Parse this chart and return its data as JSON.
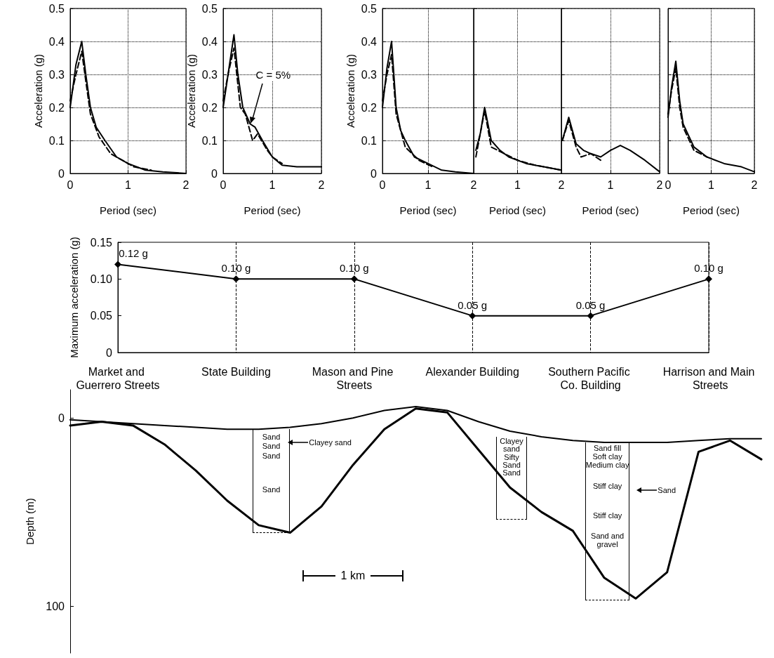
{
  "chart_data": [
    {
      "type": "line",
      "ylabel": "Acceleration (g)",
      "xlabel": "Period (sec)",
      "xlim": [
        0,
        2
      ],
      "xticks": [
        0,
        1,
        2
      ],
      "ylim": [
        0,
        0.5
      ],
      "yticks": [
        0,
        0.1,
        0.2,
        0.3,
        0.4,
        0.5
      ],
      "grid": true,
      "marker": "none",
      "series": [
        {
          "color": "#000000",
          "line_style": "solid",
          "x": [
            0,
            0.1,
            0.2,
            0.27,
            0.35,
            0.45,
            0.6,
            0.8,
            1.0,
            1.3,
            1.6,
            2.0
          ],
          "values": [
            0.2,
            0.33,
            0.4,
            0.3,
            0.2,
            0.14,
            0.1,
            0.05,
            0.03,
            0.01,
            0.005,
            0
          ]
        },
        {
          "color": "#000000",
          "line_style": "dashed",
          "x": [
            0,
            0.1,
            0.2,
            0.27,
            0.35,
            0.5,
            0.7,
            0.9,
            1.1,
            1.4
          ],
          "values": [
            0.22,
            0.3,
            0.37,
            0.28,
            0.18,
            0.11,
            0.06,
            0.04,
            0.02,
            0.01
          ]
        }
      ]
    },
    {
      "type": "line",
      "ylabel": "Acceleration (g)",
      "xlabel": "Period (sec)",
      "xlim": [
        0,
        2
      ],
      "xticks": [
        0,
        1,
        2
      ],
      "ylim": [
        0,
        0.5
      ],
      "yticks": [
        0,
        0.1,
        0.2,
        0.3,
        0.4,
        0.5
      ],
      "grid": true,
      "marker": "none",
      "annotations": [
        {
          "text": "C = 5%",
          "x": 0.55,
          "y": 0.15
        }
      ],
      "series": [
        {
          "color": "#000000",
          "line_style": "solid",
          "x": [
            0,
            0.1,
            0.22,
            0.3,
            0.4,
            0.55,
            0.65,
            0.8,
            1.0,
            1.2,
            1.5,
            2.0
          ],
          "values": [
            0.2,
            0.3,
            0.42,
            0.3,
            0.2,
            0.15,
            0.14,
            0.1,
            0.05,
            0.025,
            0.02,
            0.02
          ]
        },
        {
          "color": "#000000",
          "line_style": "dashed",
          "x": [
            0,
            0.1,
            0.22,
            0.35,
            0.45,
            0.6,
            0.7,
            0.9,
            1.0,
            1.2
          ],
          "values": [
            0.22,
            0.3,
            0.38,
            0.2,
            0.18,
            0.1,
            0.12,
            0.07,
            0.05,
            0.03
          ]
        }
      ]
    },
    {
      "type": "line",
      "ylabel": "Acceleration (g)",
      "xlabel": "Period (sec)",
      "xlim": [
        0,
        2
      ],
      "xticks": [
        0,
        1,
        2
      ],
      "ylim": [
        0,
        0.5
      ],
      "yticks": [
        0,
        0.1,
        0.2,
        0.3,
        0.4,
        0.5
      ],
      "grid": true,
      "marker": "none",
      "series": [
        {
          "color": "#000000",
          "line_style": "solid",
          "x": [
            0,
            0.1,
            0.2,
            0.3,
            0.4,
            0.5,
            0.7,
            1.0,
            1.3,
            1.6,
            2.0
          ],
          "values": [
            0.2,
            0.32,
            0.4,
            0.2,
            0.13,
            0.1,
            0.05,
            0.03,
            0.01,
            0.005,
            0
          ]
        },
        {
          "color": "#000000",
          "line_style": "dashed",
          "x": [
            0,
            0.1,
            0.2,
            0.3,
            0.5,
            0.8,
            1.1
          ],
          "values": [
            0.22,
            0.3,
            0.36,
            0.18,
            0.08,
            0.04,
            0.02
          ]
        }
      ]
    },
    {
      "type": "line",
      "xlabel": "Period (sec)",
      "xlim": [
        0,
        2
      ],
      "xticks": [
        1,
        2
      ],
      "ylim": [
        0,
        0.5
      ],
      "yticks": [
        0,
        0.1,
        0.2,
        0.3,
        0.4,
        0.5
      ],
      "grid": true,
      "tick_labels": "x",
      "marker": "none",
      "series": [
        {
          "color": "#000000",
          "line_style": "solid",
          "x": [
            0.05,
            0.15,
            0.25,
            0.4,
            0.6,
            0.8,
            1.2,
            1.6,
            2.0
          ],
          "values": [
            0.07,
            0.12,
            0.2,
            0.1,
            0.07,
            0.05,
            0.03,
            0.02,
            0.01
          ]
        },
        {
          "color": "#000000",
          "line_style": "dashed",
          "x": [
            0.05,
            0.25,
            0.4,
            0.7,
            1.0,
            1.4,
            2.0
          ],
          "values": [
            0.05,
            0.19,
            0.08,
            0.06,
            0.04,
            0.025,
            0.01
          ]
        }
      ]
    },
    {
      "type": "line",
      "xlabel": "Period (sec)",
      "xlim": [
        0,
        2
      ],
      "xticks": [
        1,
        2
      ],
      "ylim": [
        0,
        0.5
      ],
      "yticks": [
        0,
        0.1,
        0.2,
        0.3,
        0.4,
        0.5
      ],
      "grid": true,
      "tick_labels": "x",
      "marker": "none",
      "series": [
        {
          "color": "#000000",
          "line_style": "solid",
          "x": [
            0.02,
            0.15,
            0.3,
            0.45,
            0.6,
            0.8,
            1.0,
            1.2,
            1.4,
            1.7,
            2.0
          ],
          "values": [
            0.1,
            0.17,
            0.09,
            0.07,
            0.06,
            0.05,
            0.07,
            0.085,
            0.07,
            0.04,
            0.005
          ]
        },
        {
          "color": "#000000",
          "line_style": "dashed",
          "x": [
            0.02,
            0.15,
            0.3,
            0.4,
            0.6,
            0.8
          ],
          "values": [
            0.1,
            0.16,
            0.08,
            0.05,
            0.06,
            0.04
          ]
        }
      ]
    },
    {
      "type": "line",
      "xlabel": "Period (sec)",
      "xlim": [
        0,
        2
      ],
      "xticks": [
        0,
        1,
        2
      ],
      "ylim": [
        0,
        0.5
      ],
      "yticks": [
        0,
        0.1,
        0.2,
        0.3,
        0.4,
        0.5
      ],
      "grid": true,
      "tick_labels": "x",
      "marker": "none",
      "series": [
        {
          "color": "#000000",
          "line_style": "solid",
          "x": [
            0,
            0.08,
            0.18,
            0.27,
            0.35,
            0.6,
            0.9,
            1.3,
            1.7,
            2.0
          ],
          "values": [
            0.17,
            0.26,
            0.34,
            0.22,
            0.15,
            0.08,
            0.05,
            0.03,
            0.02,
            0.005
          ]
        },
        {
          "color": "#000000",
          "line_style": "dashed",
          "x": [
            0,
            0.08,
            0.18,
            0.27,
            0.35,
            0.6,
            0.9
          ],
          "values": [
            0.18,
            0.25,
            0.32,
            0.2,
            0.14,
            0.07,
            0.05
          ]
        }
      ]
    },
    {
      "type": "line",
      "ylabel": "Maximum acceleration (g)",
      "categories": [
        "Market and Guerrero Streets",
        "State Building",
        "Mason and Pine Streets",
        "Alexander Building",
        "Southern Pacific Co. Building",
        "Harrison and Main Streets"
      ],
      "values": [
        0.12,
        0.1,
        0.1,
        0.05,
        0.05,
        0.1
      ],
      "value_labels": [
        "0.12 g",
        "0.10 g",
        "0.10 g",
        "0.05 g",
        "0.05 g",
        "0.10 g"
      ],
      "color": "#000000",
      "line_style": "solid",
      "marker": "diamond",
      "ylim": [
        0,
        0.15
      ],
      "yticks": [
        0,
        0.05,
        {
          "value": 0.1,
          "label": "0.10"
        },
        0.15
      ],
      "grid": "x"
    },
    {
      "type": "line",
      "ylabel": "Depth (m)",
      "categories": [
        null,
        null,
        null,
        null,
        null,
        null,
        null,
        null,
        null,
        null,
        null,
        null,
        null,
        null,
        null,
        null,
        null,
        null,
        null,
        null,
        null,
        null,
        null
      ],
      "ylim": [
        125,
        -15
      ],
      "yticks": [
        0,
        100
      ],
      "tick_labels": "y",
      "marker": "none",
      "series": [
        {
          "color": "#000000",
          "line_style": "solid",
          "values": [
            1,
            2,
            3,
            4,
            5,
            6,
            6,
            5,
            3,
            0,
            -4,
            -6,
            -4,
            2,
            7,
            10,
            12,
            13,
            13,
            13,
            12,
            11,
            11
          ]
        },
        {
          "color": "#000000",
          "line_style": "solid",
          "values": [
            4,
            2,
            4,
            14,
            28,
            44,
            57,
            61,
            47,
            25,
            6,
            -5,
            -3,
            17,
            37,
            50,
            60,
            85,
            96,
            82,
            18,
            12,
            22
          ]
        }
      ],
      "annotations": [
        "1 km",
        "Sand",
        "Clayey sand",
        "Sand",
        "Sand",
        "Sand",
        "Clayey sand",
        "Sifty Sand",
        "Sand",
        "Sand fill",
        "Soft clay",
        "Medium clay",
        "Stiff clay",
        "Sand",
        "Stiff clay",
        "Sand and gravel"
      ]
    }
  ]
}
